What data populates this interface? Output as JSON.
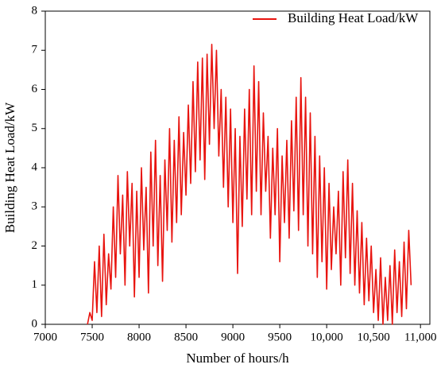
{
  "chart_data": {
    "type": "line",
    "xlabel": "Number of hours/h",
    "ylabel": "Building Heat Load/kW",
    "legend": "upper right",
    "xlim": [
      7000,
      11100
    ],
    "ylim": [
      0,
      8
    ],
    "xticks": [
      7000,
      7500,
      8000,
      8500,
      9000,
      9500,
      {
        "value": 10000,
        "label": "10,000"
      },
      {
        "value": 10500,
        "label": "10,500"
      },
      {
        "value": 11000,
        "label": "11,000"
      }
    ],
    "yticks": [
      0,
      1,
      2,
      3,
      4,
      5,
      6,
      7,
      8
    ],
    "x": [
      7450,
      7475,
      7500,
      7525,
      7550,
      7575,
      7600,
      7625,
      7650,
      7675,
      7700,
      7725,
      7750,
      7775,
      7800,
      7825,
      7850,
      7875,
      7900,
      7925,
      7950,
      7975,
      8000,
      8025,
      8050,
      8075,
      8100,
      8125,
      8150,
      8175,
      8200,
      8225,
      8250,
      8275,
      8300,
      8325,
      8350,
      8375,
      8400,
      8425,
      8450,
      8475,
      8500,
      8525,
      8550,
      8575,
      8600,
      8625,
      8650,
      8675,
      8700,
      8725,
      8750,
      8775,
      8800,
      8825,
      8850,
      8875,
      8900,
      8925,
      8950,
      8975,
      9000,
      9025,
      9050,
      9075,
      9100,
      9125,
      9150,
      9175,
      9200,
      9225,
      9250,
      9275,
      9300,
      9325,
      9350,
      9375,
      9400,
      9425,
      9450,
      9475,
      9500,
      9525,
      9550,
      9575,
      9600,
      9625,
      9650,
      9675,
      9700,
      9725,
      9750,
      9775,
      9800,
      9825,
      9850,
      9875,
      9900,
      9925,
      9950,
      9975,
      10000,
      10025,
      10050,
      10075,
      10100,
      10125,
      10150,
      10175,
      10200,
      10225,
      10250,
      10275,
      10300,
      10325,
      10350,
      10375,
      10400,
      10425,
      10450,
      10475,
      10500,
      10525,
      10550,
      10575,
      10600,
      10625,
      10650,
      10675,
      10700,
      10725,
      10750,
      10775,
      10800,
      10825,
      10850,
      10875,
      10900
    ],
    "series": [
      {
        "name": "Building Heat Load/kW",
        "color": "#e8140f",
        "values": [
          0,
          0.3,
          0.1,
          1.6,
          0.3,
          2.0,
          0.2,
          2.3,
          0.5,
          1.8,
          0.9,
          3.0,
          1.2,
          3.8,
          1.8,
          3.3,
          1.0,
          3.9,
          2.0,
          3.6,
          0.7,
          3.4,
          1.2,
          4.0,
          1.9,
          3.5,
          0.8,
          4.4,
          2.0,
          4.7,
          1.5,
          3.8,
          1.1,
          4.2,
          2.4,
          5.0,
          2.1,
          4.7,
          2.6,
          5.3,
          2.8,
          4.9,
          3.3,
          5.6,
          3.6,
          6.2,
          3.9,
          6.7,
          4.2,
          6.8,
          3.7,
          6.9,
          4.6,
          7.15,
          5.0,
          7.0,
          4.3,
          6.0,
          3.5,
          5.8,
          3.0,
          5.5,
          2.6,
          5.0,
          1.3,
          4.8,
          2.5,
          5.5,
          3.2,
          6.0,
          2.8,
          6.6,
          3.4,
          6.2,
          2.8,
          5.4,
          3.4,
          4.8,
          2.2,
          4.5,
          2.8,
          5.0,
          1.6,
          4.3,
          2.6,
          4.7,
          2.2,
          5.2,
          2.9,
          5.8,
          2.4,
          6.3,
          2.8,
          5.8,
          2.0,
          5.4,
          1.8,
          4.8,
          1.2,
          4.3,
          1.6,
          4.0,
          0.9,
          3.6,
          1.4,
          3.0,
          1.8,
          3.4,
          1.0,
          3.9,
          1.7,
          4.2,
          1.3,
          3.6,
          1.0,
          2.9,
          0.8,
          2.6,
          0.5,
          2.2,
          0.6,
          2.0,
          0.3,
          1.4,
          0.1,
          1.7,
          0.0,
          1.2,
          0.1,
          1.5,
          0.0,
          1.9,
          0.3,
          1.6,
          0.2,
          2.1,
          0.4,
          2.4,
          1.0
        ]
      }
    ]
  }
}
